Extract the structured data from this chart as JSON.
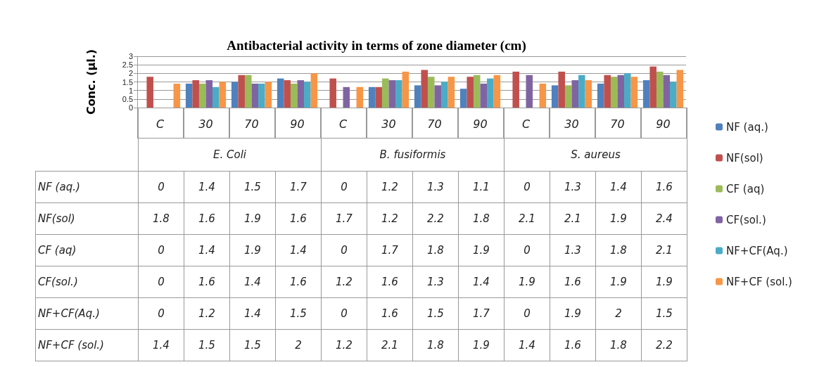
{
  "chart_data": {
    "type": "bar",
    "title": "Antibacterial activity in terms of zone diameter (cm)",
    "ylabel": "Conc. (µl.)",
    "categories": [
      "C",
      "30",
      "70",
      "90",
      "C",
      "30",
      "70",
      "90",
      "C",
      "30",
      "70",
      "90"
    ],
    "annotations": [
      "E. Coli",
      "B. fusiformis",
      "S. aureus"
    ],
    "series": [
      {
        "name": "NF (aq.)",
        "color": "#4f81bd",
        "values": [
          0,
          1.4,
          1.5,
          1.7,
          0,
          1.2,
          1.3,
          1.1,
          0,
          1.3,
          1.4,
          1.6
        ]
      },
      {
        "name": "NF(sol)",
        "color": "#c0504d",
        "values": [
          1.8,
          1.6,
          1.9,
          1.6,
          1.7,
          1.2,
          2.2,
          1.8,
          2.1,
          2.1,
          1.9,
          2.4
        ]
      },
      {
        "name": "CF (aq)",
        "color": "#9bbb59",
        "values": [
          0,
          1.4,
          1.9,
          1.4,
          0,
          1.7,
          1.8,
          1.9,
          0,
          1.3,
          1.8,
          2.1
        ]
      },
      {
        "name": "CF(sol.)",
        "color": "#8064a2",
        "values": [
          0,
          1.6,
          1.4,
          1.6,
          1.2,
          1.6,
          1.3,
          1.4,
          1.9,
          1.6,
          1.9,
          1.9
        ]
      },
      {
        "name": "NF+CF(Aq.)",
        "color": "#4bacc6",
        "values": [
          0,
          1.2,
          1.4,
          1.5,
          0,
          1.6,
          1.5,
          1.7,
          0,
          1.9,
          2,
          1.5
        ]
      },
      {
        "name": "NF+CF (sol.)",
        "color": "#f79646",
        "values": [
          1.4,
          1.5,
          1.5,
          2,
          1.2,
          2.1,
          1.8,
          1.9,
          1.4,
          1.6,
          1.8,
          2.2
        ]
      }
    ],
    "ylim": [
      0,
      3
    ],
    "yticks": [
      0,
      0.5,
      1,
      1.5,
      2,
      2.5,
      3
    ],
    "grid": "y",
    "legend": "right",
    "data_labels": true
  }
}
